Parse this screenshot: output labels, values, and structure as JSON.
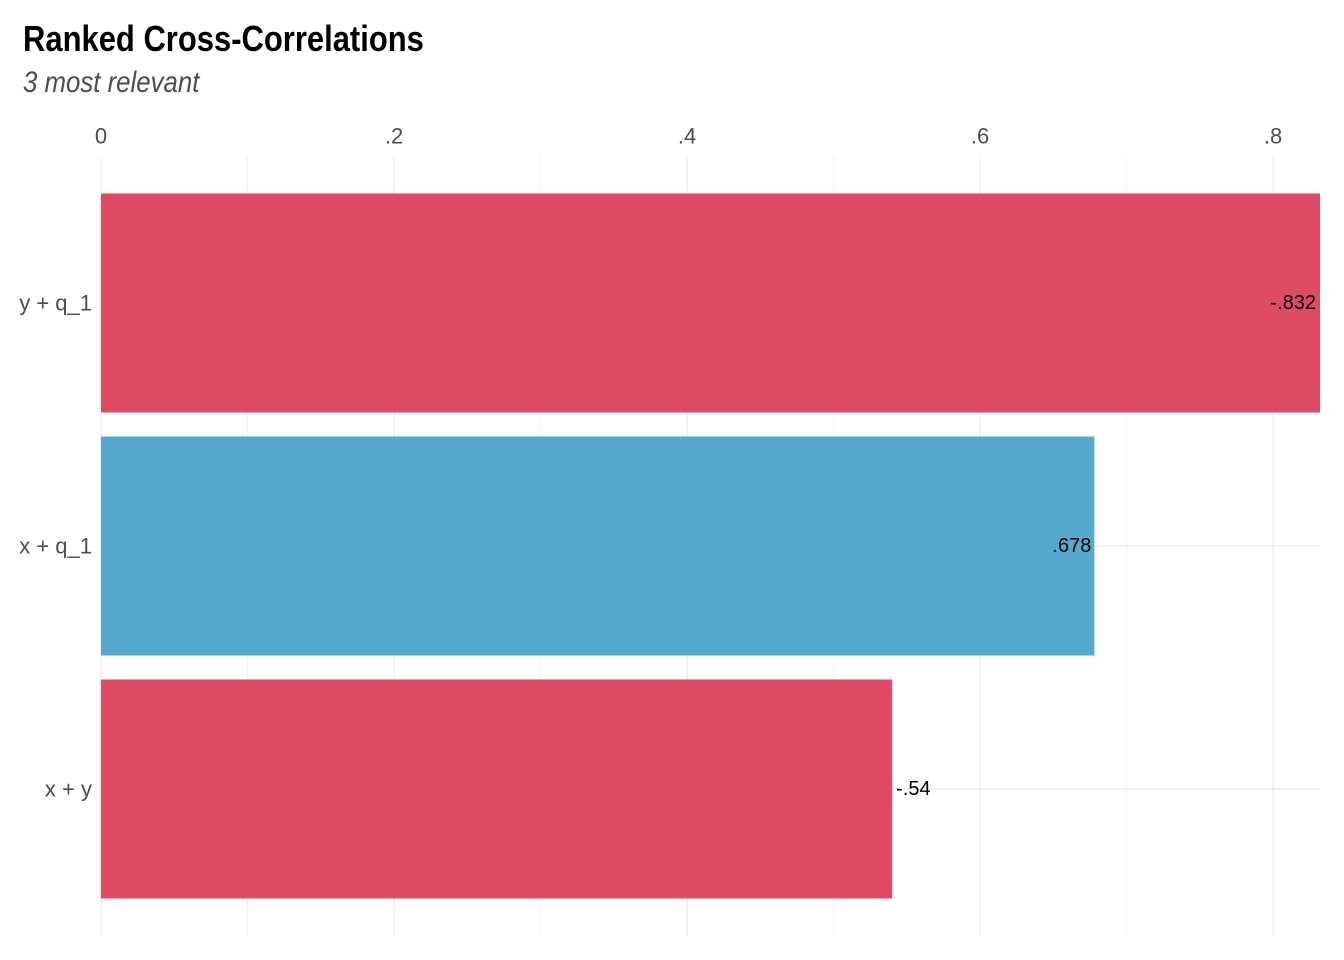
{
  "chart_data": {
    "type": "bar",
    "orientation": "horizontal",
    "title": "Ranked Cross-Correlations",
    "subtitle": "3 most relevant",
    "xlabel": "",
    "ylabel": "",
    "xlim": [
      0,
      0.832
    ],
    "x_ticks": [
      0,
      0.2,
      0.4,
      0.6,
      0.8
    ],
    "x_tick_labels": [
      "0",
      ".2",
      ".4",
      ".6",
      ".8"
    ],
    "x_axis_position": "top",
    "grid": true,
    "legend": "none",
    "categories": [
      "y + q_1",
      "x + q_1",
      "x + y"
    ],
    "values": [
      -0.832,
      0.678,
      -0.54
    ],
    "value_labels": [
      "-.832",
      ".678",
      "-.54"
    ],
    "colors": {
      "negative": "#df4a64",
      "positive": "#54a9cd",
      "grid": "#e5e5e5"
    }
  }
}
